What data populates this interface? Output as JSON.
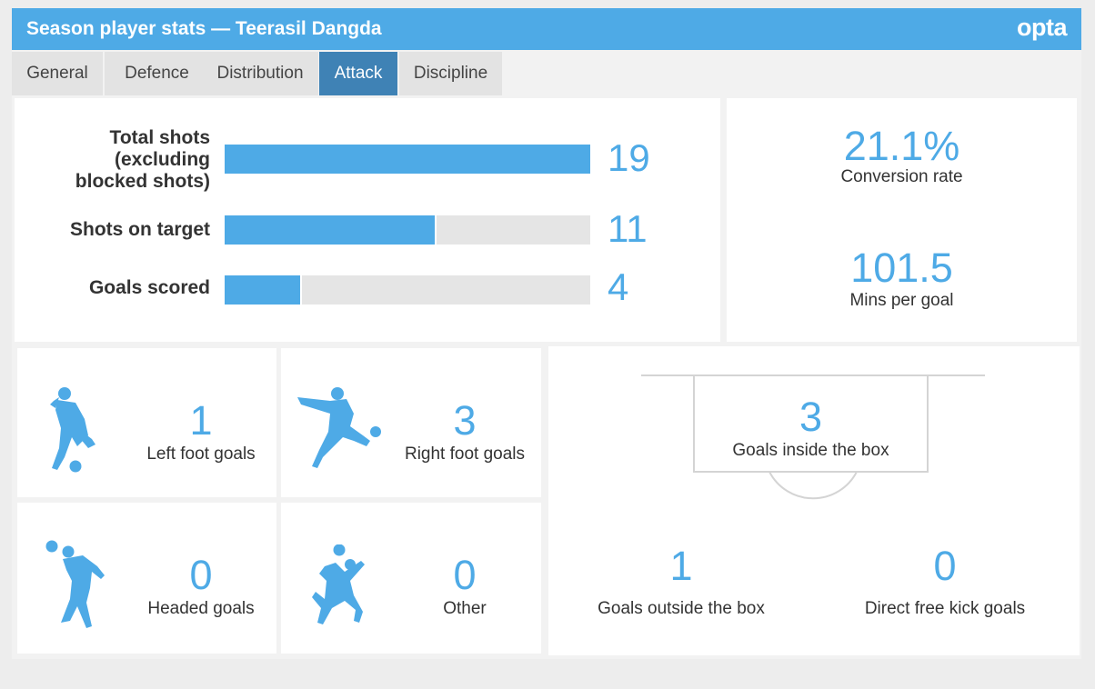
{
  "header": {
    "title": "Season player stats — Teerasil Dangda",
    "logo": "opta"
  },
  "tabs": [
    "General",
    "Defence",
    "Distribution",
    "Attack",
    "Discipline"
  ],
  "active_tab": "Attack",
  "colors": {
    "accent": "#4eaae6",
    "active_tab": "#3f82b5",
    "bar_background": "#e5e5e5"
  },
  "shots": {
    "max": 19,
    "items": [
      {
        "label": "Total shots\n(excluding\nblocked shots)",
        "value": 19
      },
      {
        "label": "Shots on target",
        "value": 11
      },
      {
        "label": "Goals scored",
        "value": 4
      }
    ]
  },
  "rates": {
    "conversion": {
      "value": "21.1%",
      "label": "Conversion rate"
    },
    "mins_per_goal": {
      "value": "101.5",
      "label": "Mins per goal"
    }
  },
  "goal_types": [
    {
      "value": "1",
      "label": "Left foot goals",
      "icon": "left-foot-player-icon"
    },
    {
      "value": "3",
      "label": "Right foot goals",
      "icon": "right-foot-player-icon"
    },
    {
      "value": "0",
      "label": "Headed goals",
      "icon": "header-player-icon"
    },
    {
      "value": "0",
      "label": "Other",
      "icon": "chest-control-player-icon"
    }
  ],
  "locations": {
    "inside_box": {
      "value": "3",
      "label": "Goals inside the box"
    },
    "outside_box": {
      "value": "1",
      "label": "Goals outside the box"
    },
    "free_kick": {
      "value": "0",
      "label": "Direct free kick goals"
    }
  }
}
